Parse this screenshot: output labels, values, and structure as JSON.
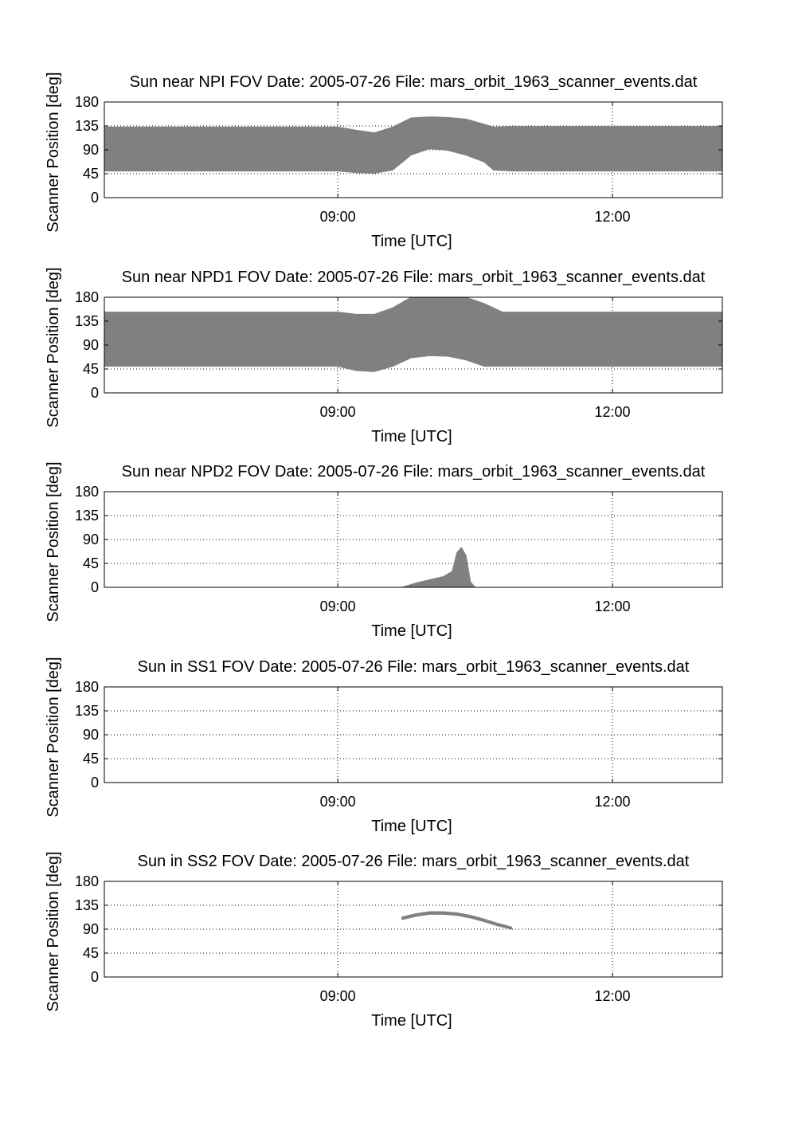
{
  "chart_data": [
    {
      "type": "area",
      "title": "Sun near NPI FOV    Date: 2005-07-26    File: mars_orbit_1963_scanner_events.dat",
      "xlabel": "Time [UTC]",
      "ylabel": "Scanner Position [deg]",
      "x_ticks": [
        {
          "x": 9.0,
          "label": "09:00"
        },
        {
          "x": 12.0,
          "label": "12:00"
        }
      ],
      "xlim": [
        6.45,
        13.2
      ],
      "ylim": [
        0,
        180
      ],
      "y_ticks": [
        0,
        45,
        90,
        135,
        180
      ],
      "grid": true,
      "color": "#808080",
      "series": [
        {
          "x": [
            6.45,
            8.0,
            9.0,
            9.2,
            9.4,
            9.6,
            9.8,
            10.0,
            10.2,
            10.4,
            10.6,
            10.7,
            10.9,
            11.5,
            12.5,
            13.2
          ],
          "upper": [
            133,
            133,
            133,
            127,
            122,
            133,
            150,
            152,
            151,
            148,
            138,
            133,
            134,
            134,
            134,
            134
          ],
          "lower": [
            50,
            50,
            50,
            47,
            46,
            52,
            80,
            92,
            89,
            80,
            67,
            52,
            50,
            50,
            50,
            50
          ]
        }
      ]
    },
    {
      "type": "area",
      "title": "Sun near NPD1 FOV    Date: 2005-07-26    File: mars_orbit_1963_scanner_events.dat",
      "xlabel": "Time [UTC]",
      "ylabel": "Scanner Position [deg]",
      "x_ticks": [
        {
          "x": 9.0,
          "label": "09:00"
        },
        {
          "x": 12.0,
          "label": "12:00"
        }
      ],
      "xlim": [
        6.45,
        13.2
      ],
      "ylim": [
        0,
        180
      ],
      "y_ticks": [
        0,
        45,
        90,
        135,
        180
      ],
      "grid": true,
      "color": "#808080",
      "series": [
        {
          "x": [
            6.45,
            8.0,
            9.0,
            9.2,
            9.4,
            9.6,
            9.8,
            10.0,
            10.2,
            10.4,
            10.6,
            10.8,
            11.5,
            12.5,
            13.2
          ],
          "upper": [
            152,
            152,
            152,
            148,
            148,
            160,
            180,
            180,
            180,
            180,
            168,
            152,
            152,
            152,
            152
          ],
          "lower": [
            50,
            50,
            50,
            42,
            40,
            50,
            66,
            70,
            69,
            62,
            50,
            50,
            50,
            50,
            50
          ]
        }
      ]
    },
    {
      "type": "area",
      "title": "Sun near NPD2 FOV    Date: 2005-07-26    File: mars_orbit_1963_scanner_events.dat",
      "xlabel": "Time [UTC]",
      "ylabel": "Scanner Position [deg]",
      "x_ticks": [
        {
          "x": 9.0,
          "label": "09:00"
        },
        {
          "x": 12.0,
          "label": "12:00"
        }
      ],
      "xlim": [
        6.45,
        13.2
      ],
      "ylim": [
        0,
        180
      ],
      "y_ticks": [
        0,
        45,
        90,
        135,
        180
      ],
      "grid": true,
      "color": "#808080",
      "series": [
        {
          "x": [
            9.7,
            9.85,
            10.0,
            10.15,
            10.25,
            10.3,
            10.35,
            10.4,
            10.45,
            10.5
          ],
          "upper": [
            0,
            8,
            14,
            20,
            30,
            65,
            75,
            60,
            10,
            0
          ],
          "lower": [
            0,
            0,
            0,
            0,
            0,
            0,
            0,
            0,
            0,
            0
          ]
        }
      ]
    },
    {
      "type": "area",
      "title": "Sun in SS1 FOV    Date: 2005-07-26    File: mars_orbit_1963_scanner_events.dat",
      "xlabel": "Time [UTC]",
      "ylabel": "Scanner Position [deg]",
      "x_ticks": [
        {
          "x": 9.0,
          "label": "09:00"
        },
        {
          "x": 12.0,
          "label": "12:00"
        }
      ],
      "xlim": [
        6.45,
        13.2
      ],
      "ylim": [
        0,
        180
      ],
      "y_ticks": [
        0,
        45,
        90,
        135,
        180
      ],
      "grid": true,
      "color": "#808080",
      "series": []
    },
    {
      "type": "area",
      "title": "Sun in SS2 FOV    Date: 2005-07-26    File: mars_orbit_1963_scanner_events.dat",
      "xlabel": "Time [UTC]",
      "ylabel": "Scanner Position [deg]",
      "x_ticks": [
        {
          "x": 9.0,
          "label": "09:00"
        },
        {
          "x": 12.0,
          "label": "12:00"
        }
      ],
      "xlim": [
        6.45,
        13.2
      ],
      "ylim": [
        0,
        180
      ],
      "y_ticks": [
        0,
        45,
        90,
        135,
        180
      ],
      "grid": true,
      "color": "#808080",
      "series": [
        {
          "x": [
            9.7,
            9.85,
            10.0,
            10.15,
            10.3,
            10.45,
            10.6,
            10.75,
            10.9
          ],
          "upper": [
            113,
            119,
            123,
            123,
            121,
            116,
            109,
            101,
            94
          ],
          "lower": [
            108,
            114,
            118,
            118,
            116,
            111,
            104,
            96,
            90
          ]
        }
      ]
    }
  ]
}
